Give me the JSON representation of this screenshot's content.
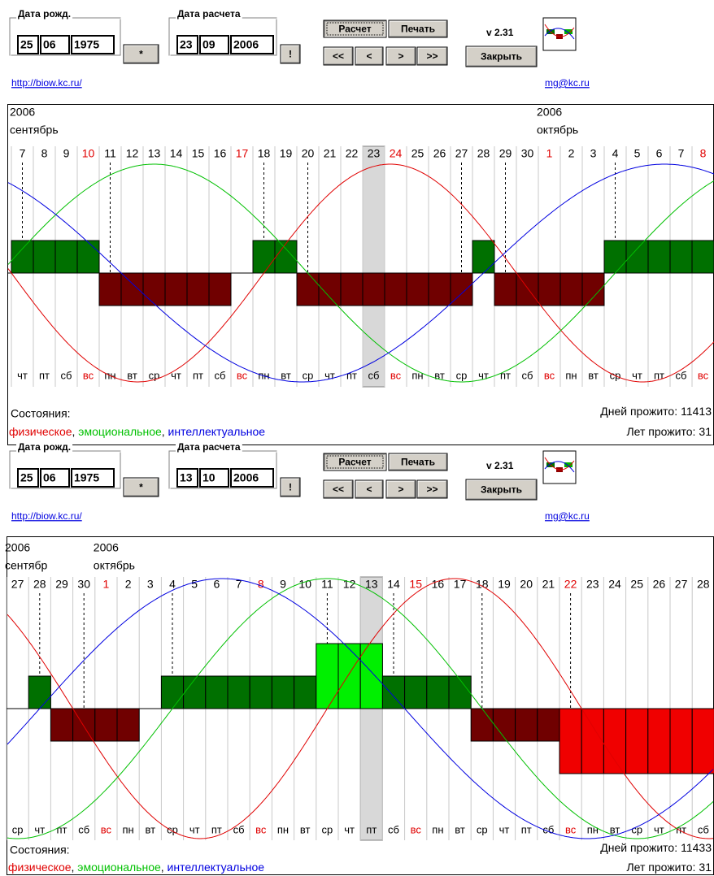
{
  "panels": [
    {
      "birth_label": "Дата рожд.",
      "birth": [
        "25",
        "06",
        "1975"
      ],
      "star": "*",
      "calc_label": "Дата расчета",
      "calc": [
        "23",
        "09",
        "2006"
      ],
      "go": "!",
      "calc_button": "Расчет",
      "print_button": "Печать",
      "nav": [
        "<<",
        "<",
        ">",
        ">>"
      ],
      "version": "v 2.31",
      "close_button": "Закрыть",
      "url": "http://biow.kc.ru/",
      "email": "mg@kc.ru",
      "months": [
        {
          "year": "2006",
          "name": "сентябрь"
        },
        {
          "year": "2006",
          "name": "октябрь"
        }
      ],
      "days": [
        "7",
        "8",
        "9",
        "10",
        "11",
        "12",
        "13",
        "14",
        "15",
        "16",
        "17",
        "18",
        "19",
        "20",
        "21",
        "22",
        "23",
        "24",
        "25",
        "26",
        "27",
        "28",
        "29",
        "30",
        "1",
        "2",
        "3",
        "4",
        "5",
        "6",
        "7",
        "8"
      ],
      "weekdays": [
        "чт",
        "пт",
        "сб",
        "вс",
        "пн",
        "вт",
        "ср",
        "чт",
        "пт",
        "сб",
        "вс",
        "пн",
        "вт",
        "ср",
        "чт",
        "пт",
        "сб",
        "вс",
        "пн",
        "вт",
        "ср",
        "чт",
        "пт",
        "сб",
        "вс",
        "пн",
        "вт",
        "ср",
        "чт",
        "пт",
        "сб",
        "вс"
      ],
      "day_colors": [
        "#000",
        "#000",
        "#000",
        "#e00000",
        "#000",
        "#000",
        "#000",
        "#000",
        "#000",
        "#000",
        "#e00000",
        "#000",
        "#000",
        "#000",
        "#000",
        "#000",
        "#000",
        "#e00000",
        "#000",
        "#000",
        "#000",
        "#000",
        "#000",
        "#000",
        "#e00000",
        "#000",
        "#000",
        "#000",
        "#000",
        "#000",
        "#000",
        "#e00000"
      ],
      "levels": [
        1,
        1,
        1,
        1,
        -1,
        -1,
        -1,
        -1,
        -1,
        -1,
        0,
        1,
        1,
        -1,
        -1,
        -1,
        -1,
        -1,
        -1,
        -1,
        -1,
        1,
        -1,
        -1,
        -1,
        -1,
        -1,
        1,
        1,
        1,
        1,
        1
      ],
      "states_label": "Состояния:",
      "legend": [
        {
          "text": "физическое",
          "color": "#e00000"
        },
        {
          "text": "эмоциональное",
          "color": "#00c000"
        },
        {
          "text": "интеллектуальное",
          "color": "#0000e0"
        }
      ],
      "legend_separator": ", ",
      "days_lived_label": "Дней прожито:",
      "days_lived": 11413,
      "years_lived_label": "Лет прожито:",
      "years_lived": 31
    },
    {
      "birth_label": "Дата рожд.",
      "birth": [
        "25",
        "06",
        "1975"
      ],
      "star": "*",
      "calc_label": "Дата расчета",
      "calc": [
        "13",
        "10",
        "2006"
      ],
      "go": "!",
      "calc_button": "Расчет",
      "print_button": "Печать",
      "nav": [
        "<<",
        "<",
        ">",
        ">>"
      ],
      "version": "v 2.31",
      "close_button": "Закрыть",
      "url": "http://biow.kc.ru/",
      "email": "mg@kc.ru",
      "months": [
        {
          "year": "2006",
          "name": "сентябр"
        },
        {
          "year": "2006",
          "name": "октябрь"
        }
      ],
      "days": [
        "27",
        "28",
        "29",
        "30",
        "1",
        "2",
        "3",
        "4",
        "5",
        "6",
        "7",
        "8",
        "9",
        "10",
        "11",
        "12",
        "13",
        "14",
        "15",
        "16",
        "17",
        "18",
        "19",
        "20",
        "21",
        "22",
        "23",
        "24",
        "25",
        "26",
        "27",
        "28"
      ],
      "weekdays": [
        "ср",
        "чт",
        "пт",
        "сб",
        "вс",
        "пн",
        "вт",
        "ср",
        "чт",
        "пт",
        "сб",
        "вс",
        "пн",
        "вт",
        "ср",
        "чт",
        "пт",
        "сб",
        "вс",
        "пн",
        "вт",
        "ср",
        "чт",
        "пт",
        "сб",
        "вс",
        "пн",
        "вт",
        "ср",
        "чт",
        "пт",
        "сб"
      ],
      "day_colors": [
        "#000",
        "#000",
        "#000",
        "#000",
        "#e00000",
        "#000",
        "#000",
        "#000",
        "#000",
        "#000",
        "#000",
        "#e00000",
        "#000",
        "#000",
        "#000",
        "#000",
        "#000",
        "#000",
        "#e00000",
        "#000",
        "#000",
        "#000",
        "#000",
        "#000",
        "#000",
        "#e00000",
        "#000",
        "#000",
        "#000",
        "#000",
        "#000",
        "#000"
      ],
      "levels": [
        0,
        1,
        -1,
        -1,
        -1,
        -1,
        0,
        1,
        1,
        1,
        1,
        1,
        1,
        1,
        2,
        2,
        2,
        1,
        1,
        1,
        1,
        -1,
        -1,
        -1,
        -1,
        -2,
        -2,
        -2,
        -2,
        -2,
        -2,
        -2
      ],
      "states_label": "Состояния:",
      "legend": [
        {
          "text": "физическое",
          "color": "#e00000"
        },
        {
          "text": "эмоциональное",
          "color": "#00c000"
        },
        {
          "text": "интеллектуальное",
          "color": "#0000e0"
        }
      ],
      "legend_separator": ", ",
      "days_lived_label": "Дней прожито:",
      "days_lived": 11433,
      "years_lived_label": "Лет прожито:",
      "years_lived": 31
    }
  ]
}
